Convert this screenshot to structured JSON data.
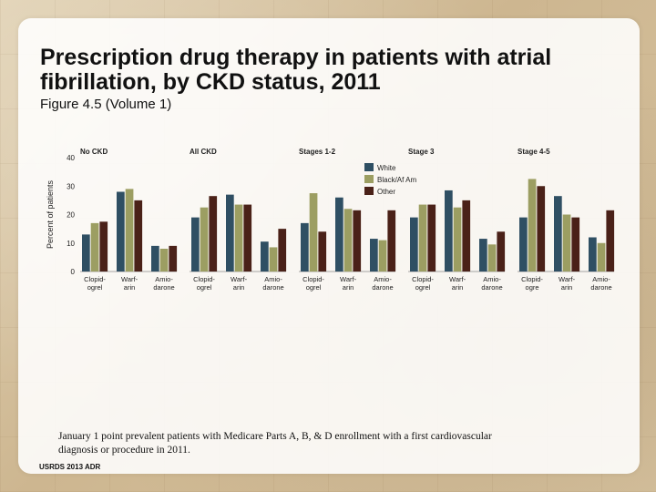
{
  "slide": {
    "title": "Prescription drug therapy in patients with atrial fibrillation, by CKD status, 2011",
    "subtitle": "Figure 4.5 (Volume 1)",
    "footnote": "January 1 point prevalent patients with Medicare Parts A, B, & D enrollment with a first cardiovascular diagnosis or procedure in 2011.",
    "source": "USRDS 2013 ADR"
  },
  "chart_data": {
    "type": "bar",
    "ylabel": "Percent of patients",
    "ylim": [
      0,
      40
    ],
    "yticks": [
      0,
      10,
      20,
      30,
      40
    ],
    "grid": false,
    "legend": {
      "position": "top-right",
      "entries": [
        "White",
        "Black/Af Am",
        "Other"
      ]
    },
    "colors": [
      "#2f4f63",
      "#9c9e62",
      "#4a2118"
    ],
    "panels": [
      {
        "title": "No CKD",
        "categories": [
          [
            "Clopid-",
            "ogrel"
          ],
          [
            "Warf-",
            "arin"
          ],
          [
            "Amio-",
            "darone"
          ]
        ],
        "series": [
          {
            "name": "White",
            "values": [
              13,
              28,
              9
            ]
          },
          {
            "name": "Black/Af Am",
            "values": [
              17,
              29,
              8
            ]
          },
          {
            "name": "Other",
            "values": [
              17.5,
              25,
              9
            ]
          }
        ]
      },
      {
        "title": "All CKD",
        "categories": [
          [
            "Clopid-",
            "ogrel"
          ],
          [
            "Warf-",
            "arin"
          ],
          [
            "Amio-",
            "darone"
          ]
        ],
        "series": [
          {
            "name": "White",
            "values": [
              19,
              27,
              10.5
            ]
          },
          {
            "name": "Black/Af Am",
            "values": [
              22.5,
              23.5,
              8.5
            ]
          },
          {
            "name": "Other",
            "values": [
              26.5,
              23.5,
              15
            ]
          }
        ]
      },
      {
        "title": "Stages 1-2",
        "categories": [
          [
            "Clopid-",
            "ogrel"
          ],
          [
            "Warf-",
            "arin"
          ],
          [
            "Amio-",
            "darone"
          ]
        ],
        "series": [
          {
            "name": "White",
            "values": [
              17,
              26,
              11.5
            ]
          },
          {
            "name": "Black/Af Am",
            "values": [
              27.5,
              22,
              11
            ]
          },
          {
            "name": "Other",
            "values": [
              14,
              21.5,
              21.5
            ]
          }
        ]
      },
      {
        "title": "Stage 3",
        "categories": [
          [
            "Clopid-",
            "ogrel"
          ],
          [
            "Warf-",
            "arin"
          ],
          [
            "Amio-",
            "darone"
          ]
        ],
        "series": [
          {
            "name": "White",
            "values": [
              19,
              28.5,
              11.5
            ]
          },
          {
            "name": "Black/Af Am",
            "values": [
              23.5,
              22.5,
              9.5
            ]
          },
          {
            "name": "Other",
            "values": [
              23.5,
              25,
              14
            ]
          }
        ]
      },
      {
        "title": "Stage 4-5",
        "categories": [
          [
            "Clopid-",
            "ogre"
          ],
          [
            "Warf-",
            "arin"
          ],
          [
            "Amio-",
            "darone"
          ]
        ],
        "series": [
          {
            "name": "White",
            "values": [
              19,
              26.5,
              12
            ]
          },
          {
            "name": "Black/Af Am",
            "values": [
              32.5,
              20,
              10
            ]
          },
          {
            "name": "Other",
            "values": [
              30,
              19,
              21.5
            ]
          }
        ]
      }
    ]
  }
}
